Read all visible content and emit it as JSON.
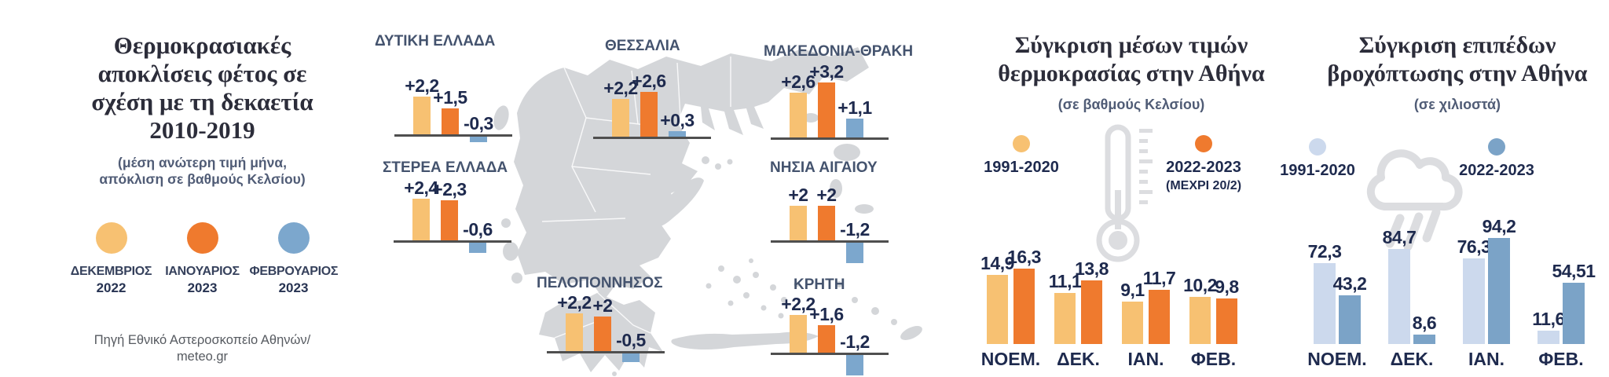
{
  "palette": {
    "december_2022": "#f7c172",
    "january_2023": "#ef7a2e",
    "february_2023": "#7ca7cd",
    "rain_1991_2020": "#ccd9ed",
    "rain_2022_2023": "#7ba3c7",
    "map_gray": "#d4d6d9",
    "text_navy": "#1e2a4e"
  },
  "intro": {
    "title": "Θερμοκρασιακές\nαποκλίσεις φέτος σε\nσχέση με τη δεκαετία\n2010-2019",
    "subtitle": "(μέση ανώτερη τιμή μήνα,\nαπόκλιση σε βαθμούς Κελσίου)",
    "legend": [
      {
        "label": "ΔΕΚΕΜΒΡΙΟΣ",
        "year": "2022",
        "color": "#f7c172"
      },
      {
        "label": "ΙΑΝΟΥΑΡΙΟΣ",
        "year": "2023",
        "color": "#ef7a2e"
      },
      {
        "label": "ΦΕΒΡΟΥΑΡΙΟΣ",
        "year": "2023",
        "color": "#7ca7cd"
      }
    ],
    "source": "Πηγή Εθνικό Αστεροσκοπείο Αθηνών/\nmeteo.gr"
  },
  "chart_data": [
    {
      "id": "regional_temperature_deviations",
      "type": "bar",
      "title": "Θερμοκρασιακές αποκλίσεις φέτος σε σχέση με τη δεκαετία 2010-2019",
      "unit": "βαθμοί Κελσίου (απόκλιση)",
      "series": [
        "ΔΕΚΕΜΒΡΙΟΣ 2022",
        "ΙΑΝΟΥΑΡΙΟΣ 2023",
        "ΦΕΒΡΟΥΑΡΙΟΣ 2023"
      ],
      "series_colors": [
        "#f7c172",
        "#ef7a2e",
        "#7ca7cd"
      ],
      "regions": [
        {
          "name": "ΔΥΤΙΚΗ ΕΛΛΑΔΑ",
          "values": [
            2.2,
            1.5,
            -0.3
          ],
          "labels": [
            "+2,2",
            "+1,5",
            "-0,3"
          ]
        },
        {
          "name": "ΣΤΕΡΕΑ ΕΛΛΑΔΑ",
          "values": [
            2.4,
            2.3,
            -0.6
          ],
          "labels": [
            "+2,4",
            "+2,3",
            "-0,6"
          ]
        },
        {
          "name": "ΘΕΣΣΑΛΙΑ",
          "values": [
            2.2,
            2.6,
            0.3
          ],
          "labels": [
            "+2,2",
            "+2,6",
            "+0,3"
          ]
        },
        {
          "name": "ΜΑΚΕΔΟΝΙΑ-ΘΡΑΚΗ",
          "values": [
            2.6,
            3.2,
            1.1
          ],
          "labels": [
            "+2,6",
            "+3,2",
            "+1,1"
          ]
        },
        {
          "name": "ΝΗΣΙΑ ΑΙΓΑΙΟΥ",
          "values": [
            2.0,
            2.0,
            -1.2
          ],
          "labels": [
            "+2",
            "+2",
            "-1,2"
          ]
        },
        {
          "name": "ΠΕΛΟΠΟΝΝΗΣΟΣ",
          "values": [
            2.2,
            2.0,
            -0.5
          ],
          "labels": [
            "+2,2",
            "+2",
            "-0,5"
          ]
        },
        {
          "name": "ΚΡΗΤΗ",
          "values": [
            2.2,
            1.6,
            -1.2
          ],
          "labels": [
            "+2,2",
            "+1,6",
            "-1,2"
          ]
        }
      ]
    },
    {
      "id": "athens_mean_temperature",
      "type": "bar",
      "title": "Σύγκριση μέσων τιμών\nθερμοκρασίας στην Αθήνα",
      "subtitle": "(σε βαθμούς Κελσίου)",
      "categories": [
        "ΝΟΕΜ.",
        "ΔΕΚ.",
        "ΙΑΝ.",
        "ΦΕΒ."
      ],
      "series": [
        {
          "name": "1991-2020",
          "note": "",
          "color": "#f7c172",
          "values": [
            14.9,
            11.1,
            9.1,
            10.2
          ],
          "labels": [
            "14,9",
            "11,1",
            "9,1",
            "10,2"
          ]
        },
        {
          "name": "2022-2023",
          "note": "(ΜΕΧΡΙ 20/2)",
          "color": "#ef7a2e",
          "values": [
            16.3,
            13.8,
            11.7,
            9.8
          ],
          "labels": [
            "16,3",
            "13,8",
            "11,7",
            "9,8"
          ]
        }
      ]
    },
    {
      "id": "athens_rainfall_levels",
      "type": "bar",
      "title": "Σύγκριση επιπέδων\nβροχόπτωσης στην Αθήνα",
      "subtitle": "(σε χιλιοστά)",
      "categories": [
        "ΝΟΕΜ.",
        "ΔΕΚ.",
        "ΙΑΝ.",
        "ΦΕΒ."
      ],
      "series": [
        {
          "name": "1991-2020",
          "note": "",
          "color": "#ccd9ed",
          "values": [
            72.3,
            84.7,
            76.3,
            11.6
          ],
          "labels": [
            "72,3",
            "84,7",
            "76,3",
            "11,6"
          ]
        },
        {
          "name": "2022-2023",
          "note": "",
          "color": "#7ba3c7",
          "values": [
            43.2,
            8.6,
            94.2,
            54.51
          ],
          "labels": [
            "43,2",
            "8,6",
            "94,2",
            "54,51"
          ]
        }
      ]
    }
  ]
}
